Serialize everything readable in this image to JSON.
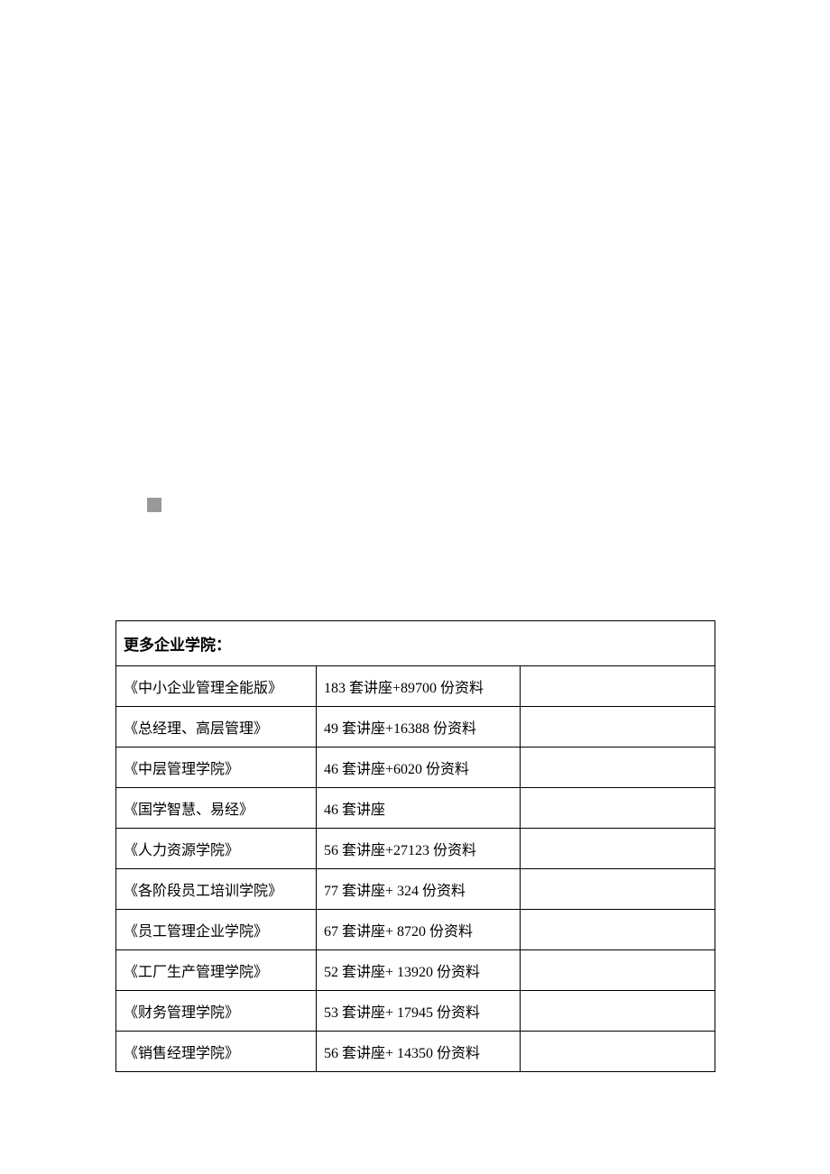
{
  "table": {
    "header": "更多企业学院：",
    "rows": [
      {
        "name": "《中小企业管理全能版》",
        "detail": "183 套讲座+89700 份资料"
      },
      {
        "name": "《总经理、高层管理》",
        "detail": "49 套讲座+16388 份资料"
      },
      {
        "name": "《中层管理学院》",
        "detail": "46 套讲座+6020 份资料"
      },
      {
        "name": "《国学智慧、易经》",
        "detail": "46 套讲座"
      },
      {
        "name": "《人力资源学院》",
        "detail": "56 套讲座+27123 份资料"
      },
      {
        "name": "《各阶段员工培训学院》",
        "detail": "77 套讲座+ 324 份资料"
      },
      {
        "name": "《员工管理企业学院》",
        "detail": "67 套讲座+ 8720 份资料"
      },
      {
        "name": "《工厂生产管理学院》",
        "detail": "52 套讲座+ 13920 份资料"
      },
      {
        "name": "《财务管理学院》",
        "detail": "53 套讲座+ 17945 份资料"
      },
      {
        "name": "《销售经理学院》",
        "detail": "56 套讲座+ 14350 份资料"
      }
    ]
  }
}
